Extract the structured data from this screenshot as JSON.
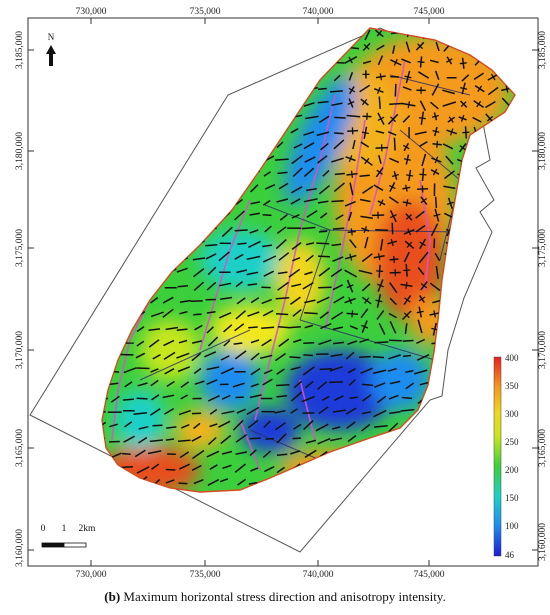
{
  "map": {
    "top_ticks": [
      "730,000",
      "735,000",
      "740,000",
      "745,000"
    ],
    "bottom_ticks": [
      "730,000",
      "735,000",
      "740,000",
      "745,000"
    ],
    "left_ticks": [
      "3,185,000",
      "3,180,000",
      "3,175,000",
      "3,170,000",
      "3,165,000",
      "3,160,000"
    ],
    "right_ticks": [
      "3,185,000",
      "3,180,000",
      "3,175,000",
      "3,170,000",
      "3,165,000",
      "3,160,000"
    ],
    "north_label": "N",
    "scale_labels": [
      "0",
      "1",
      "2km"
    ],
    "colorbar": {
      "labels": [
        "400",
        "350",
        "300",
        "250",
        "200",
        "150",
        "100",
        "46"
      ],
      "min": 46,
      "max": 400
    },
    "colors": {
      "high": "#e83a1f",
      "mid_high": "#f4a21e",
      "mid": "#f2e81e",
      "mid_low": "#3ccf3c",
      "low": "#1e8cf0",
      "lowest": "#1f2bd8"
    }
  },
  "caption": {
    "label": "(b)",
    "text": " Maximum horizontal stress direction and anisotropy intensity."
  }
}
